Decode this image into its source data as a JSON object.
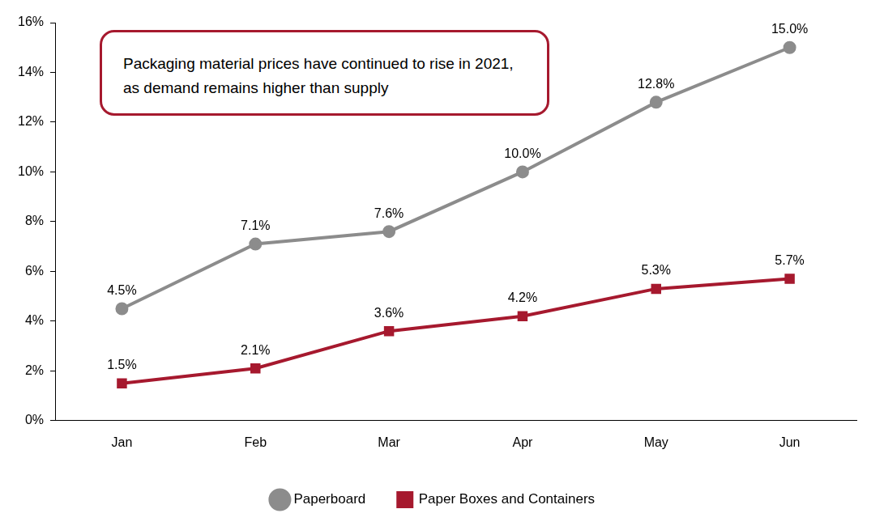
{
  "chart_data": {
    "type": "line",
    "annotation": "Packaging material prices have continued to rise in 2021, as demand remains higher than supply",
    "categories": [
      "Jan",
      "Feb",
      "Mar",
      "Apr",
      "May",
      "Jun"
    ],
    "series": [
      {
        "name": "Paperboard",
        "color": "#8c8c8c",
        "marker": "circle",
        "line_style": "solid",
        "values": [
          4.5,
          7.1,
          7.6,
          10.0,
          12.8,
          15.0
        ],
        "value_labels": [
          "4.5%",
          "7.1%",
          "7.6%",
          "10.0%",
          "12.8%",
          "15.0%"
        ]
      },
      {
        "name": "Paper Boxes and Containers",
        "color": "#a6192e",
        "marker": "square",
        "line_style": "solid",
        "values": [
          1.5,
          2.1,
          3.6,
          4.2,
          5.3,
          5.7
        ],
        "value_labels": [
          "1.5%",
          "2.1%",
          "3.6%",
          "4.2%",
          "5.3%",
          "5.7%"
        ]
      }
    ],
    "ylim": [
      0,
      16
    ],
    "yticks": [
      {
        "value": 0,
        "label": "0%"
      },
      {
        "value": 2,
        "label": "2%"
      },
      {
        "value": 4,
        "label": "4%"
      },
      {
        "value": 6,
        "label": "6%"
      },
      {
        "value": 8,
        "label": "8%"
      },
      {
        "value": 10,
        "label": "10%"
      },
      {
        "value": 12,
        "label": "12%"
      },
      {
        "value": 14,
        "label": "14%"
      },
      {
        "value": 16,
        "label": "16%"
      }
    ],
    "grid": false,
    "legend": "bottom",
    "data_labels": true
  }
}
